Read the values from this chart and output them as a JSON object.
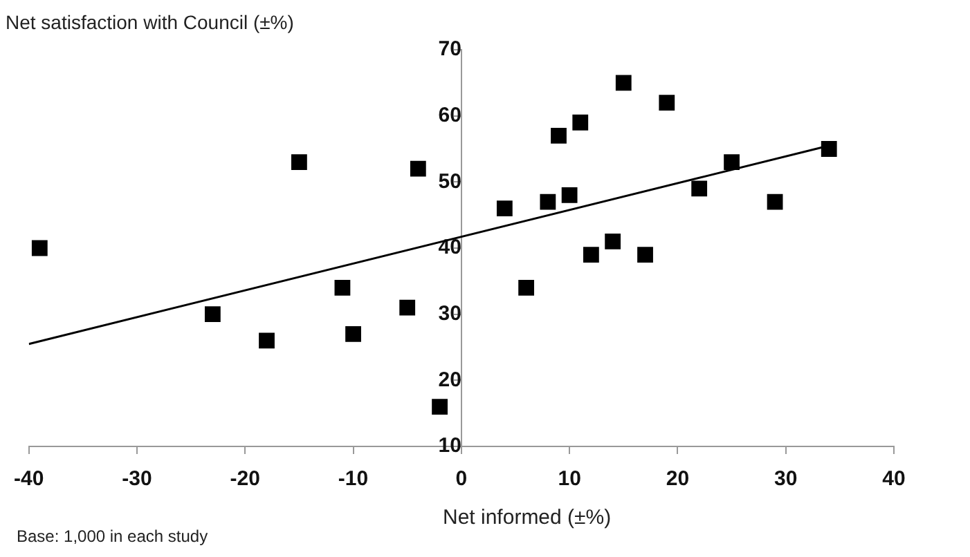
{
  "chart_data": {
    "type": "scatter",
    "ylabel": "Net satisfaction with Council (±%)",
    "xlabel": "Net informed (±%)",
    "annotations": [
      "Base:  1,000 in each study"
    ],
    "xlim": [
      -40,
      40
    ],
    "xticks": [
      -40,
      -30,
      -20,
      -10,
      0,
      10,
      20,
      30,
      40
    ],
    "ylim": [
      10,
      70
    ],
    "yticks": [
      10,
      20,
      30,
      40,
      50,
      60,
      70
    ],
    "series": [
      {
        "color": "#000000",
        "marker": "square",
        "x": [
          -39,
          -23,
          -18,
          -15,
          -11,
          -10,
          -5,
          -4,
          -2,
          4,
          6,
          8,
          9,
          10,
          11,
          12,
          14,
          15,
          17,
          19,
          22,
          25,
          29,
          34
        ],
        "values": [
          40,
          30,
          26,
          53,
          34,
          27,
          31,
          52,
          16,
          46,
          34,
          47,
          57,
          48,
          59,
          39,
          41,
          65,
          39,
          62,
          49,
          53,
          47,
          55
        ]
      },
      {
        "type": "line",
        "color": "#000000",
        "marker": "none",
        "x": [
          -40,
          34
        ],
        "values": [
          25.5,
          55.5
        ]
      }
    ]
  }
}
